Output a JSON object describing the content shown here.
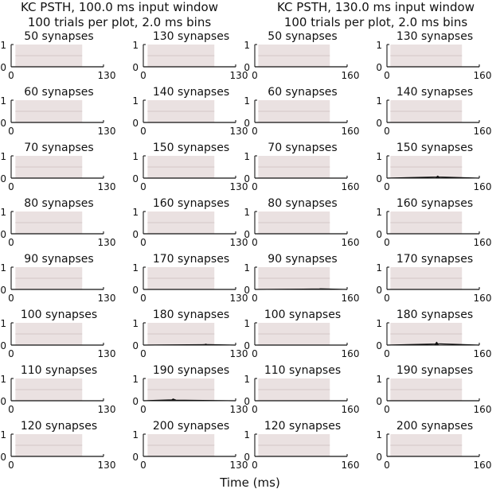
{
  "figure": {
    "xlabel": "Time (ms)"
  },
  "colors": {
    "stimulus_shade": "#eae1e1",
    "trace": "#111111",
    "axis": "#000000"
  },
  "chart_data": [
    {
      "type": "line",
      "title_lines": [
        "KC PSTH, 100.0 ms input window",
        "100 trials per plot, 2.0 ms bins"
      ],
      "window_ms": 100,
      "xlim": [
        0,
        130
      ],
      "ylim": [
        0,
        1
      ],
      "xticks": [
        "0",
        "130"
      ],
      "yticks": [
        "0",
        "1"
      ],
      "shaded_span": [
        0,
        100
      ],
      "panels": [
        {
          "title": "50 synapses",
          "peaks": []
        },
        {
          "title": "130 synapses",
          "peaks": []
        },
        {
          "title": "60 synapses",
          "peaks": []
        },
        {
          "title": "140 synapses",
          "peaks": []
        },
        {
          "title": "70 synapses",
          "peaks": []
        },
        {
          "title": "150 synapses",
          "peaks": []
        },
        {
          "title": "80 synapses",
          "peaks": []
        },
        {
          "title": "160 synapses",
          "peaks": []
        },
        {
          "title": "90 synapses",
          "peaks": []
        },
        {
          "title": "170 synapses",
          "peaks": []
        },
        {
          "title": "100 synapses",
          "peaks": []
        },
        {
          "title": "180 synapses",
          "peaks": [
            [
              86,
              0.02
            ],
            [
              88,
              0.04
            ],
            [
              90,
              0.02
            ]
          ]
        },
        {
          "title": "110 synapses",
          "peaks": []
        },
        {
          "title": "190 synapses",
          "peaks": [
            [
              40,
              0.04
            ],
            [
              42,
              0.08
            ],
            [
              44,
              0.05
            ],
            [
              46,
              0.03
            ]
          ]
        },
        {
          "title": "120 synapses",
          "peaks": []
        },
        {
          "title": "200 synapses",
          "peaks": []
        }
      ]
    },
    {
      "type": "line",
      "title_lines": [
        "KC PSTH, 130.0 ms input window",
        "100 trials per plot, 2.0 ms bins"
      ],
      "window_ms": 130,
      "xlim": [
        0,
        160
      ],
      "ylim": [
        0,
        1
      ],
      "xticks": [
        "0",
        "160"
      ],
      "yticks": [
        "0",
        "1"
      ],
      "shaded_span": [
        0,
        130
      ],
      "panels": [
        {
          "title": "50 synapses",
          "peaks": []
        },
        {
          "title": "130 synapses",
          "peaks": []
        },
        {
          "title": "60 synapses",
          "peaks": []
        },
        {
          "title": "140 synapses",
          "peaks": []
        },
        {
          "title": "70 synapses",
          "peaks": []
        },
        {
          "title": "150 synapses",
          "peaks": [
            [
              86,
              0.05
            ],
            [
              88,
              0.09
            ],
            [
              90,
              0.05
            ]
          ]
        },
        {
          "title": "80 synapses",
          "peaks": []
        },
        {
          "title": "160 synapses",
          "peaks": []
        },
        {
          "title": "90 synapses",
          "peaks": [
            [
              112,
              0.02
            ],
            [
              114,
              0.03
            ]
          ]
        },
        {
          "title": "170 synapses",
          "peaks": []
        },
        {
          "title": "100 synapses",
          "peaks": []
        },
        {
          "title": "180 synapses",
          "peaks": [
            [
              84,
              0.05
            ],
            [
              86,
              0.12
            ],
            [
              88,
              0.06
            ]
          ]
        },
        {
          "title": "110 synapses",
          "peaks": []
        },
        {
          "title": "190 synapses",
          "peaks": []
        },
        {
          "title": "120 synapses",
          "peaks": []
        },
        {
          "title": "200 synapses",
          "peaks": []
        }
      ]
    }
  ]
}
